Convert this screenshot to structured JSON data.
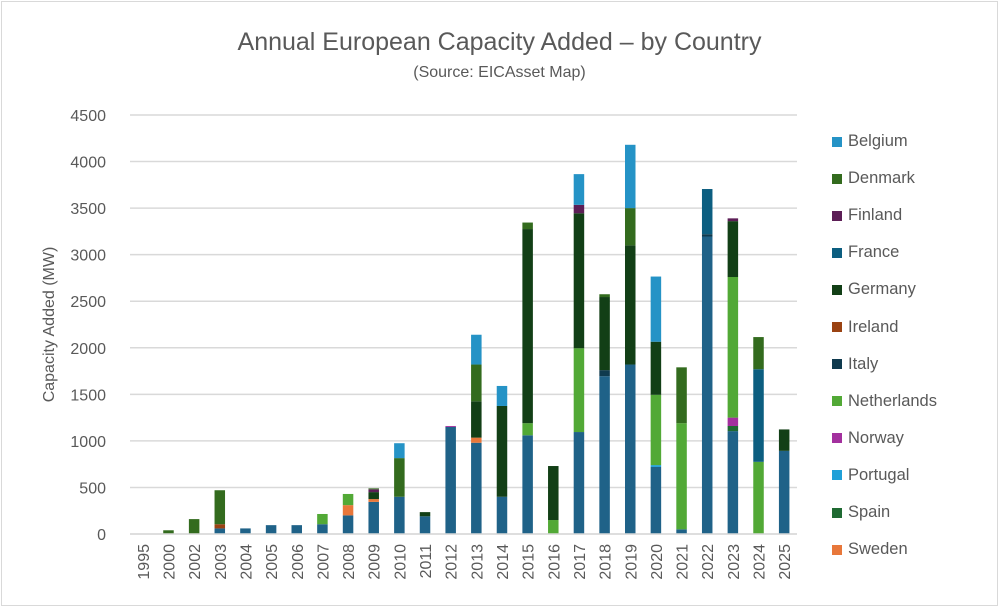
{
  "chart_data": {
    "type": "bar",
    "stacked": true,
    "title": "Annual European Capacity Added – by Country",
    "subtitle": "(Source: EICAsset Map)",
    "xlabel": "",
    "ylabel": "Capacity Added (MW)",
    "ylim": [
      0,
      4500
    ],
    "yticks": [
      0,
      500,
      1000,
      1500,
      2000,
      2500,
      3000,
      3500,
      4000,
      4500
    ],
    "grid": true,
    "legend_position": "right",
    "categories": [
      "1995",
      "2000",
      "2002",
      "2003",
      "2004",
      "2005",
      "2006",
      "2007",
      "2008",
      "2009",
      "2010",
      "2011",
      "2012",
      "2013",
      "2014",
      "2015",
      "2016",
      "2017",
      "2018",
      "2019",
      "2020",
      "2021",
      "2022",
      "2023",
      "2024",
      "2025"
    ],
    "series": [
      {
        "color": "#1f6288",
        "values": [
          0,
          0,
          0,
          60,
          60,
          95,
          95,
          105,
          200,
          345,
          400,
          190,
          1150,
          980,
          400,
          1060,
          0,
          1095,
          1695,
          1820,
          720,
          50,
          3195,
          1105,
          0,
          893
        ]
      },
      {
        "name": "Sweden",
        "color": "#e8773a",
        "values": [
          0,
          0,
          0,
          0,
          0,
          0,
          0,
          0,
          110,
          30,
          0,
          0,
          0,
          55,
          0,
          0,
          0,
          0,
          0,
          0,
          0,
          0,
          0,
          0,
          0,
          0
        ]
      },
      {
        "name": "Spain",
        "color": "#1f6a32",
        "values": [
          0,
          0,
          0,
          0,
          0,
          0,
          0,
          0,
          0,
          0,
          0,
          0,
          0,
          0,
          0,
          0,
          0,
          0,
          0,
          0,
          0,
          0,
          0,
          55,
          0,
          0
        ]
      },
      {
        "name": "Portugal",
        "color": "#20a0d8",
        "values": [
          0,
          0,
          0,
          0,
          0,
          0,
          0,
          0,
          0,
          0,
          0,
          0,
          0,
          0,
          0,
          0,
          0,
          0,
          0,
          0,
          20,
          0,
          0,
          0,
          0,
          0
        ]
      },
      {
        "name": "Norway",
        "color": "#a3309e",
        "values": [
          0,
          0,
          0,
          0,
          0,
          0,
          0,
          0,
          0,
          0,
          0,
          0,
          10,
          0,
          0,
          0,
          0,
          0,
          0,
          0,
          0,
          0,
          0,
          90,
          0,
          0
        ]
      },
      {
        "name": "Netherlands",
        "color": "#52a936",
        "values": [
          0,
          0,
          0,
          0,
          0,
          0,
          0,
          110,
          120,
          0,
          0,
          0,
          0,
          0,
          0,
          130,
          150,
          900,
          0,
          0,
          755,
          1140,
          0,
          1510,
          775,
          0
        ]
      },
      {
        "name": "Italy",
        "color": "#0f3a4e",
        "values": [
          0,
          0,
          0,
          0,
          0,
          0,
          0,
          0,
          0,
          0,
          0,
          0,
          0,
          0,
          0,
          0,
          0,
          0,
          65,
          0,
          0,
          0,
          25,
          0,
          0,
          0
        ]
      },
      {
        "name": "Ireland",
        "color": "#9a4212",
        "values": [
          0,
          0,
          0,
          45,
          0,
          0,
          0,
          0,
          0,
          0,
          0,
          0,
          0,
          0,
          0,
          0,
          0,
          0,
          0,
          0,
          0,
          0,
          0,
          0,
          0,
          0
        ]
      },
      {
        "name": "Germany",
        "color": "#123f16",
        "values": [
          0,
          0,
          0,
          0,
          0,
          0,
          0,
          0,
          0,
          75,
          0,
          45,
          0,
          390,
          975,
          2085,
          580,
          1450,
          785,
          1280,
          570,
          0,
          0,
          600,
          0,
          230
        ]
      },
      {
        "name": "France",
        "color": "#0c5e80",
        "values": [
          0,
          0,
          0,
          0,
          0,
          0,
          0,
          0,
          0,
          0,
          0,
          0,
          0,
          0,
          0,
          0,
          0,
          0,
          0,
          0,
          0,
          0,
          485,
          0,
          995,
          0
        ]
      },
      {
        "name": "Finland",
        "color": "#5c1e56",
        "values": [
          0,
          0,
          0,
          0,
          0,
          0,
          0,
          0,
          0,
          30,
          0,
          0,
          0,
          0,
          0,
          0,
          0,
          90,
          0,
          0,
          0,
          0,
          0,
          30,
          0,
          0
        ]
      },
      {
        "name": "Denmark",
        "color": "#336b1e",
        "values": [
          0,
          40,
          160,
          365,
          0,
          0,
          0,
          0,
          0,
          10,
          415,
          0,
          0,
          395,
          0,
          70,
          0,
          0,
          30,
          400,
          0,
          600,
          0,
          0,
          345,
          0
        ]
      },
      {
        "name": "Belgium",
        "color": "#2593c6",
        "values": [
          0,
          0,
          0,
          0,
          0,
          0,
          0,
          0,
          0,
          0,
          160,
          0,
          0,
          320,
          215,
          0,
          0,
          330,
          0,
          680,
          700,
          0,
          0,
          0,
          0,
          0
        ]
      }
    ]
  }
}
